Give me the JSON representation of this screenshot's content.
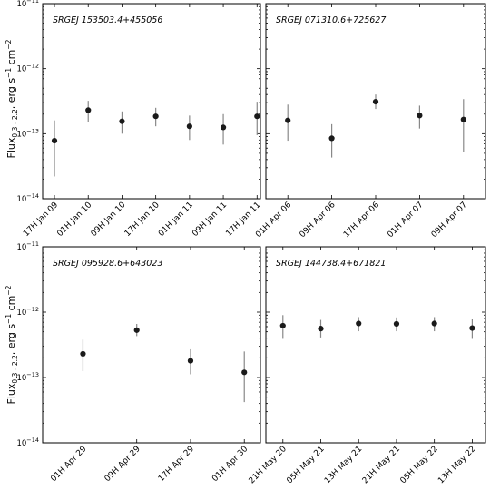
{
  "y_axis_label": "Flux",
  "y_axis_sub": "0.3 - 2.2",
  "y_axis_units": ", erg s",
  "y_axis_exp1": "−1",
  "y_axis_cm": " cm",
  "y_axis_exp2": "−2",
  "colors": {
    "points": "#1a1a1a",
    "errorbars": "#888888",
    "frame": "#000000"
  },
  "chart_data": [
    {
      "type": "scatter",
      "title": "SRGEJ 153503.4+455056",
      "y_scale": "log",
      "ylim": [
        1e-14,
        1e-11
      ],
      "y_ticks": [
        {
          "value": 1e-11,
          "base": "10",
          "exp": "−11"
        },
        {
          "value": 1e-12,
          "base": "10",
          "exp": "−12"
        },
        {
          "value": 1e-13,
          "base": "10",
          "exp": "−13"
        },
        {
          "value": 1e-14,
          "base": "10",
          "exp": "−14"
        }
      ],
      "x_range": [
        -0.35,
        6.1
      ],
      "x_ticks": [
        {
          "pos": 0,
          "label": "17H Jan 09"
        },
        {
          "pos": 1,
          "label": "01H Jan 10"
        },
        {
          "pos": 2,
          "label": "09H Jan 10"
        },
        {
          "pos": 3,
          "label": "17H Jan 10"
        },
        {
          "pos": 4,
          "label": "01H Jan 11"
        },
        {
          "pos": 5,
          "label": "09H Jan 11"
        },
        {
          "pos": 6,
          "label": "17H Jan 11"
        }
      ],
      "points": [
        {
          "x": 0.0,
          "y": 7.8e-14,
          "ylow": 2.2e-14,
          "yhigh": 1.6e-13
        },
        {
          "x": 1.0,
          "y": 2.3e-13,
          "ylow": 1.5e-13,
          "yhigh": 3.2e-13
        },
        {
          "x": 2.0,
          "y": 1.55e-13,
          "ylow": 1e-13,
          "yhigh": 2.2e-13
        },
        {
          "x": 3.0,
          "y": 1.85e-13,
          "ylow": 1.3e-13,
          "yhigh": 2.5e-13
        },
        {
          "x": 4.0,
          "y": 1.3e-13,
          "ylow": 8e-14,
          "yhigh": 1.9e-13
        },
        {
          "x": 5.0,
          "y": 1.25e-13,
          "ylow": 6.8e-14,
          "yhigh": 2e-13
        },
        {
          "x": 6.0,
          "y": 1.85e-13,
          "ylow": 9.5e-14,
          "yhigh": 3.1e-13
        }
      ]
    },
    {
      "type": "scatter",
      "title": "SRGEJ 071310.6+725627",
      "y_scale": "log",
      "ylim": [
        1e-14,
        1e-11
      ],
      "y_ticks": [],
      "x_range": [
        -0.5,
        4.5
      ],
      "x_ticks": [
        {
          "pos": 0,
          "label": "01H Apr 06"
        },
        {
          "pos": 1,
          "label": "09H Apr 06"
        },
        {
          "pos": 2,
          "label": "17H Apr 06"
        },
        {
          "pos": 3,
          "label": "01H Apr 07"
        },
        {
          "pos": 4,
          "label": "09H Apr 07"
        }
      ],
      "points": [
        {
          "x": 0.0,
          "y": 1.6e-13,
          "ylow": 7.8e-14,
          "yhigh": 2.8e-13
        },
        {
          "x": 1.0,
          "y": 8.5e-14,
          "ylow": 4.3e-14,
          "yhigh": 1.4e-13
        },
        {
          "x": 2.0,
          "y": 3.1e-13,
          "ylow": 2.4e-13,
          "yhigh": 4e-13
        },
        {
          "x": 3.0,
          "y": 1.9e-13,
          "ylow": 1.2e-13,
          "yhigh": 2.7e-13
        },
        {
          "x": 4.0,
          "y": 1.65e-13,
          "ylow": 5.3e-14,
          "yhigh": 3.4e-13
        }
      ]
    },
    {
      "type": "scatter",
      "title": "SRGEJ 095928.6+643023",
      "y_scale": "log",
      "ylim": [
        1e-14,
        1e-11
      ],
      "y_ticks": [
        {
          "value": 1e-11,
          "base": "10",
          "exp": "−11"
        },
        {
          "value": 1e-12,
          "base": "10",
          "exp": "−12"
        },
        {
          "value": 1e-13,
          "base": "10",
          "exp": "−13"
        },
        {
          "value": 1e-14,
          "base": "10",
          "exp": "−14"
        }
      ],
      "x_range": [
        -0.75,
        3.3
      ],
      "x_ticks": [
        {
          "pos": 0,
          "label": "01H Apr 29"
        },
        {
          "pos": 1,
          "label": "09H Apr 29"
        },
        {
          "pos": 2,
          "label": "17H Apr 29"
        },
        {
          "pos": 3,
          "label": "01H Apr 30"
        }
      ],
      "points": [
        {
          "x": 0.0,
          "y": 2.3e-13,
          "ylow": 1.25e-13,
          "yhigh": 3.8e-13
        },
        {
          "x": 1.0,
          "y": 5.3e-13,
          "ylow": 4.3e-13,
          "yhigh": 6.6e-13
        },
        {
          "x": 2.0,
          "y": 1.8e-13,
          "ylow": 1.12e-13,
          "yhigh": 2.7e-13
        },
        {
          "x": 3.0,
          "y": 1.2e-13,
          "ylow": 4.2e-14,
          "yhigh": 2.5e-13
        }
      ]
    },
    {
      "type": "scatter",
      "title": "SRGEJ 144738.4+671821",
      "y_scale": "log",
      "ylim": [
        1e-14,
        1e-11
      ],
      "y_ticks": [],
      "x_range": [
        -0.45,
        5.35
      ],
      "x_ticks": [
        {
          "pos": 0,
          "label": "21H May 20"
        },
        {
          "pos": 1,
          "label": "05H May 21"
        },
        {
          "pos": 2,
          "label": "13H May 21"
        },
        {
          "pos": 3,
          "label": "21H May 21"
        },
        {
          "pos": 4,
          "label": "05H May 22"
        },
        {
          "pos": 5,
          "label": "13H May 22"
        }
      ],
      "points": [
        {
          "x": 0.0,
          "y": 6.2e-13,
          "ylow": 3.9e-13,
          "yhigh": 9e-13
        },
        {
          "x": 1.0,
          "y": 5.6e-13,
          "ylow": 4.1e-13,
          "yhigh": 7.6e-13
        },
        {
          "x": 2.0,
          "y": 6.7e-13,
          "ylow": 5.1e-13,
          "yhigh": 8.4e-13
        },
        {
          "x": 3.0,
          "y": 6.6e-13,
          "ylow": 5.1e-13,
          "yhigh": 8.3e-13
        },
        {
          "x": 4.0,
          "y": 6.7e-13,
          "ylow": 5.1e-13,
          "yhigh": 8.4e-13
        },
        {
          "x": 5.0,
          "y": 5.7e-13,
          "ylow": 3.9e-13,
          "yhigh": 7.9e-13
        }
      ]
    }
  ]
}
